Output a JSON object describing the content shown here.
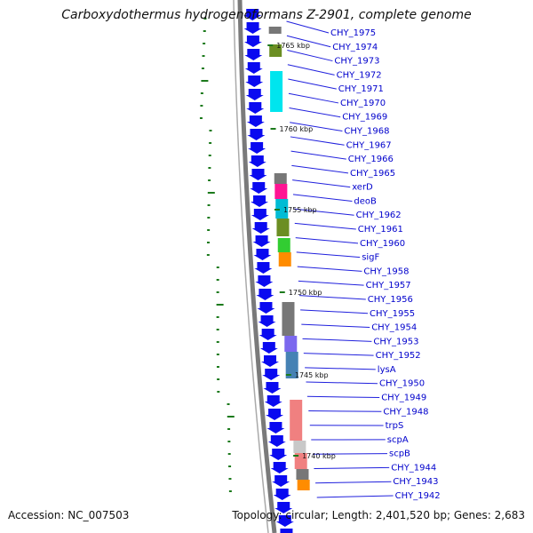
{
  "title": "Carboxydothermus hydrogenoformans Z-2901, complete genome",
  "footer": {
    "accession": "Accession: NC_007503",
    "summary": "Topology: circular; Length: 2,401,520 bp; Genes: 2,683"
  },
  "colors": {
    "backbone": "#7a7a7a",
    "gene_arrow": "#0a0af0",
    "label_text": "#0000cc",
    "gc_tick": "#1c7a1c"
  },
  "kbp_markers": [
    "1765 kbp",
    "1760 kbp",
    "1755 kbp",
    "1750 kbp",
    "1745 kbp",
    "1740 kbp"
  ],
  "gene_labels": [
    "CHY_1975",
    "CHY_1974",
    "CHY_1973",
    "CHY_1972",
    "CHY_1971",
    "CHY_1970",
    "CHY_1969",
    "CHY_1968",
    "CHY_1967",
    "CHY_1966",
    "CHY_1965",
    "xerD",
    "deoB",
    "CHY_1962",
    "CHY_1961",
    "CHY_1960",
    "sigF",
    "CHY_1958",
    "CHY_1957",
    "CHY_1956",
    "CHY_1955",
    "CHY_1954",
    "CHY_1953",
    "CHY_1952",
    "lysA",
    "CHY_1950",
    "CHY_1949",
    "CHY_1948",
    "trpS",
    "scpA",
    "scpB",
    "CHY_1944",
    "CHY_1943",
    "CHY_1942"
  ],
  "cog_blocks": [
    {
      "color": "#777777"
    },
    {
      "color": "#6b8e23"
    },
    {
      "color": "#00e5ee"
    },
    {
      "color": "#777777"
    },
    {
      "color": "#ff1493"
    },
    {
      "color": "#00bcd4"
    },
    {
      "color": "#6b8e23"
    },
    {
      "color": "#32cd32"
    },
    {
      "color": "#ff8c00"
    },
    {
      "color": "#777777"
    },
    {
      "color": "#7b68ee"
    },
    {
      "color": "#4682b4"
    },
    {
      "color": "#f08080"
    },
    {
      "color": "#c8c8c8"
    },
    {
      "color": "#f08080"
    },
    {
      "color": "#777777"
    },
    {
      "color": "#ff8c00"
    }
  ]
}
